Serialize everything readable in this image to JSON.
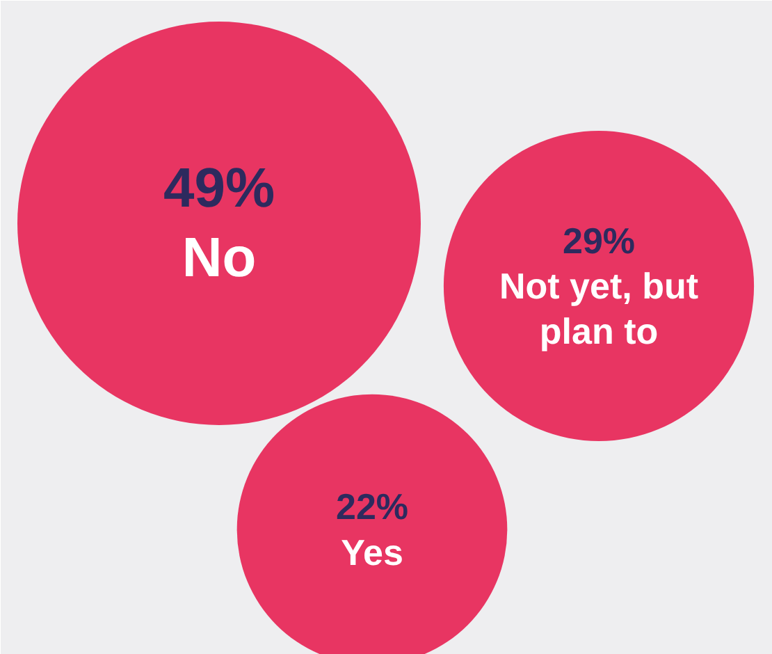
{
  "chart_data": {
    "type": "other",
    "categories": [
      "No",
      "Not yet, but plan to",
      "Yes"
    ],
    "values": [
      49,
      29,
      22
    ],
    "value_labels": [
      "49%",
      "29%",
      "22%"
    ],
    "colors": [
      "#e83562",
      "#e83562",
      "#e83562"
    ]
  }
}
